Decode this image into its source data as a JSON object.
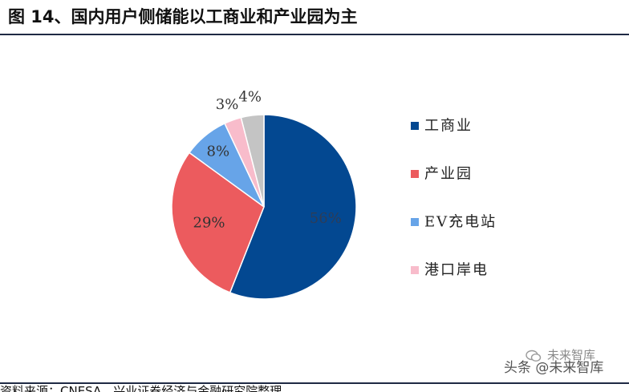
{
  "page": {
    "title": "图 14、国内用户侧储能以工商业和产业园为主",
    "source": "资料来源：CNESA，兴业证券经济与金融研究院整理",
    "watermark": "头条 @未来智库",
    "watermark_brand": "未来智库"
  },
  "chart_data": {
    "type": "pie",
    "title": "",
    "legend_position": "right",
    "slices": [
      {
        "label": "工商业",
        "value": 56,
        "display": "56%",
        "color": "#034891"
      },
      {
        "label": "产业园",
        "value": 29,
        "display": "29%",
        "color": "#ec5b5e"
      },
      {
        "label": "EV充电站",
        "value": 8,
        "display": "8%",
        "color": "#67a4e8"
      },
      {
        "label": "港口岸电",
        "value": 3,
        "display": "3%",
        "color": "#f8bccb"
      },
      {
        "label": "",
        "value": 4,
        "display": "4%",
        "color": "#c4c4c4"
      }
    ]
  }
}
